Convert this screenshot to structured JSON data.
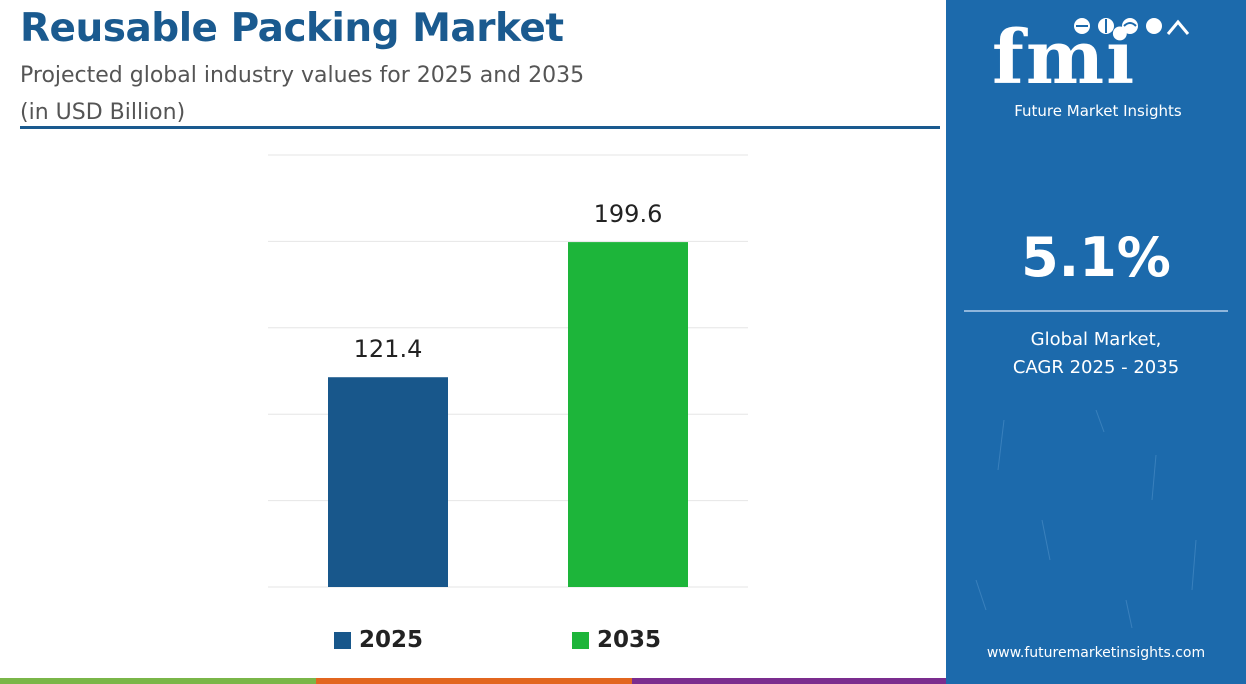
{
  "chart_data": {
    "type": "bar",
    "title": "Reusable Packing Market",
    "subtitle": "Projected global industry values for 2025 and 2035",
    "unit_note": "(in USD Billion)",
    "categories": [
      "2025",
      "2035"
    ],
    "values": [
      121.4,
      199.6
    ],
    "data_labels": [
      "121.4",
      "199.6"
    ],
    "ylim": [
      0,
      250
    ],
    "grid": true,
    "legend_position": "bottom",
    "legend": [
      {
        "label": "2025",
        "color": "#18578b"
      },
      {
        "label": "2035",
        "color": "#1db53a"
      }
    ],
    "colors": [
      "#18578b",
      "#1db53a"
    ]
  },
  "side_panel": {
    "logo_text": "fmi",
    "logo_tagline": "Future Market Insights",
    "cagr_value": "5.1%",
    "cagr_caption_line1": "Global Market,",
    "cagr_caption_line2": "CAGR 2025 - 2035",
    "website": "www.futuremarketinsights.com",
    "background_color": "#1c6aac"
  },
  "footer": {
    "strip_colors": [
      "#7ab648",
      "#e2661f",
      "#7b2d8e"
    ]
  }
}
